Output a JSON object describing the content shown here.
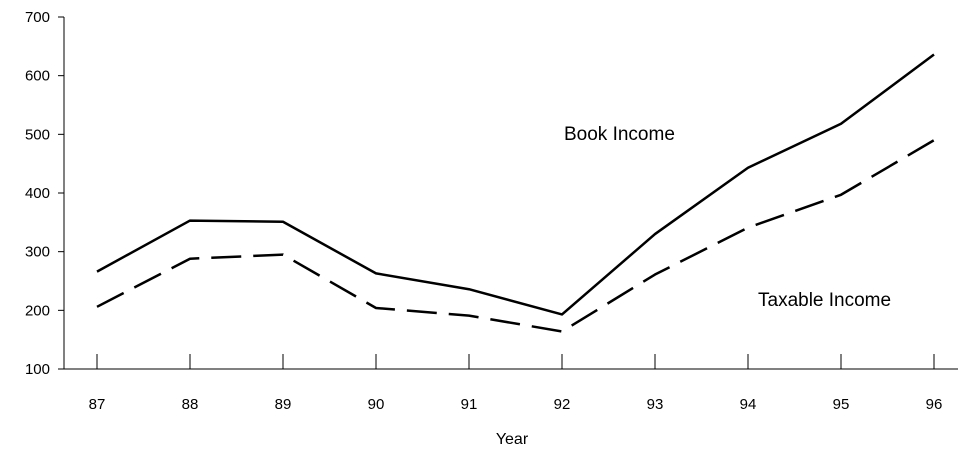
{
  "chart_data": {
    "type": "line",
    "title": "",
    "xlabel": "Year",
    "ylabel": "",
    "categories": [
      "87",
      "88",
      "89",
      "90",
      "91",
      "92",
      "93",
      "94",
      "95",
      "96"
    ],
    "ylim": [
      100,
      700
    ],
    "yticks": [
      100,
      200,
      300,
      400,
      500,
      600,
      700
    ],
    "grid": false,
    "legend": "none",
    "series": [
      {
        "name": "Book Income",
        "style": "solid",
        "color": "#000000",
        "values": [
          266,
          353,
          351,
          263,
          236,
          193,
          330,
          443,
          518,
          636
        ]
      },
      {
        "name": "Taxable Income",
        "style": "dashed",
        "color": "#000000",
        "values": [
          206,
          288,
          295,
          204,
          191,
          164,
          261,
          341,
          397,
          490
        ]
      }
    ],
    "annotations": [
      {
        "text": "Book Income",
        "series": 0
      },
      {
        "text": "Taxable Income",
        "series": 1
      }
    ]
  }
}
